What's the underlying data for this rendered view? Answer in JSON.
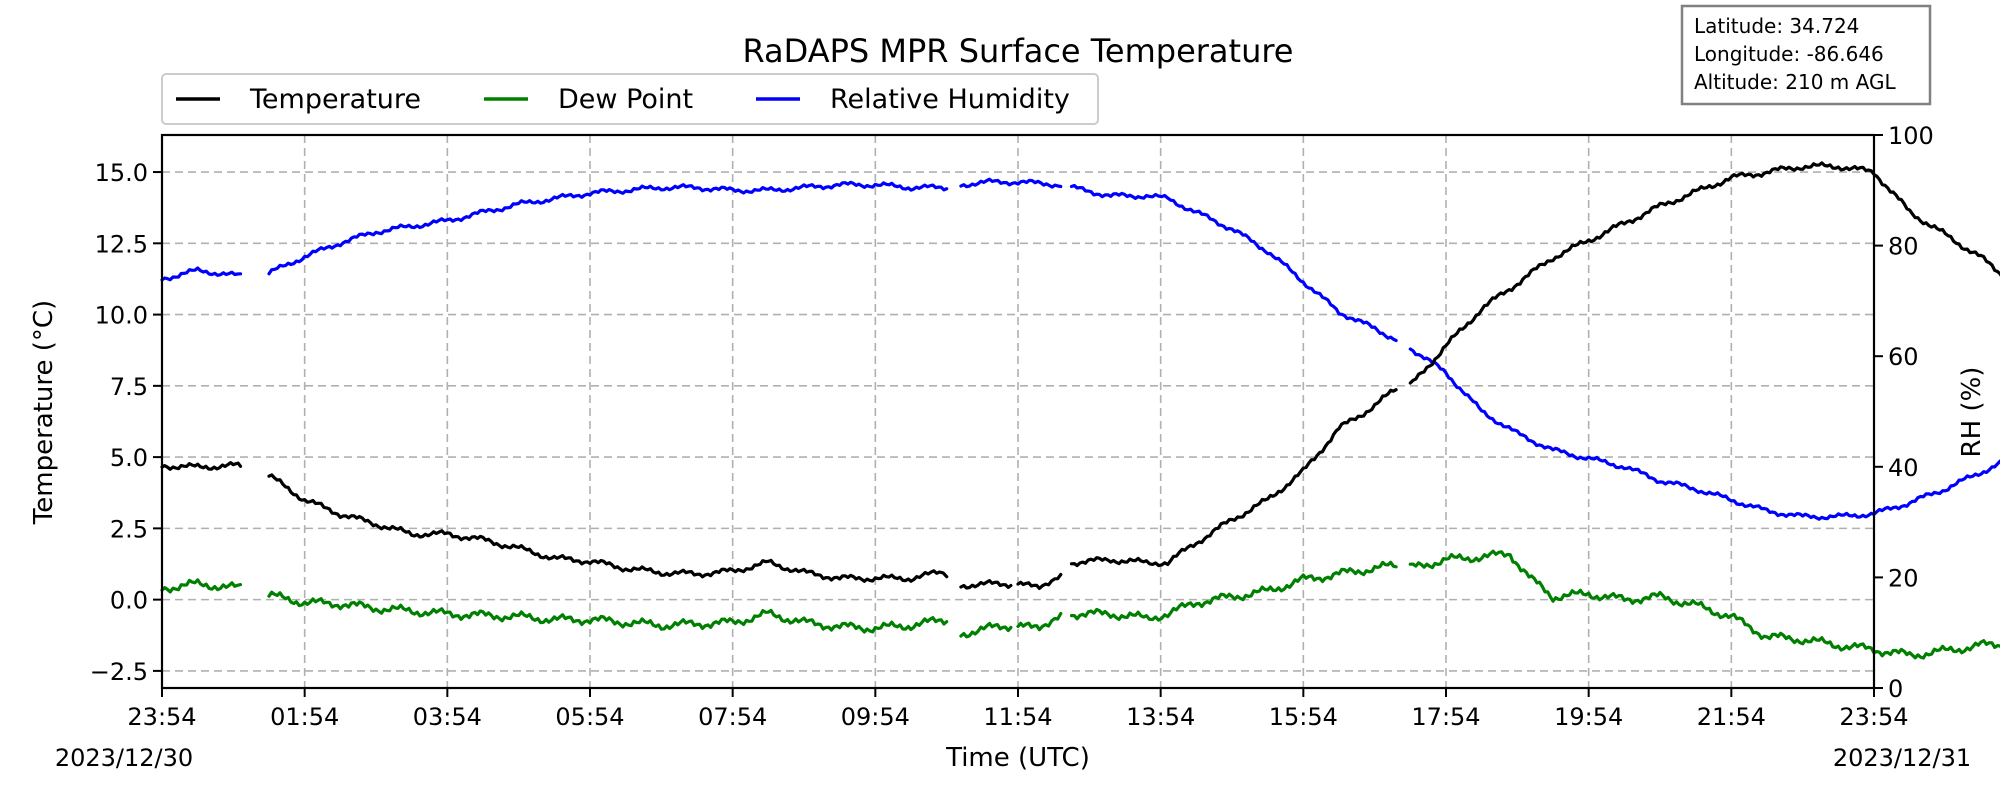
{
  "chart_data": {
    "type": "line",
    "title": "RaDAPS MPR Surface Temperature",
    "xlabel": "Time (UTC)",
    "ylabel_left": "Temperature (°C)",
    "ylabel_right": "RH (%)",
    "x_ticks": [
      "23:54",
      "01:54",
      "03:54",
      "05:54",
      "07:54",
      "09:54",
      "11:54",
      "13:54",
      "15:54",
      "17:54",
      "19:54",
      "21:54",
      "23:54"
    ],
    "date_start": "2023/12/30",
    "date_end": "2023/12/31",
    "x_range_hours": [
      0,
      24
    ],
    "y_left_ticks": [
      "−2.5",
      "0.0",
      "2.5",
      "5.0",
      "7.5",
      "10.0",
      "12.5",
      "15.0"
    ],
    "y_left_range": [
      -3.1,
      16.3
    ],
    "y_right_ticks": [
      "0",
      "20",
      "40",
      "60",
      "80",
      "100"
    ],
    "y_right_range": [
      0,
      100
    ],
    "grid": true,
    "legend_position": "top-left",
    "info_box": [
      "Latitude: 34.724",
      "Longitude: -86.646",
      "Altitude: 210 m AGL"
    ],
    "series": [
      {
        "name": "Temperature",
        "axis": "left",
        "color": "#000000",
        "segments": [
          [
            [
              0.0,
              4.7
            ],
            [
              0.5,
              4.65
            ],
            [
              1.0,
              4.7
            ],
            [
              1.1,
              4.7
            ]
          ],
          [
            [
              1.5,
              4.35
            ],
            [
              2.0,
              3.5
            ],
            [
              2.5,
              3.0
            ],
            [
              3.0,
              2.65
            ],
            [
              3.5,
              2.3
            ],
            [
              4.0,
              2.3
            ],
            [
              4.5,
              2.1
            ],
            [
              5.0,
              1.8
            ],
            [
              5.5,
              1.45
            ],
            [
              6.0,
              1.35
            ],
            [
              6.5,
              1.1
            ],
            [
              7.0,
              0.95
            ],
            [
              7.5,
              0.9
            ],
            [
              8.0,
              1.0
            ],
            [
              8.5,
              1.3
            ],
            [
              9.0,
              0.95
            ],
            [
              9.5,
              0.75
            ],
            [
              10.0,
              0.75
            ],
            [
              10.5,
              0.75
            ],
            [
              10.9,
              0.95
            ],
            [
              11.0,
              0.9
            ]
          ],
          [
            [
              11.2,
              0.5
            ],
            [
              11.6,
              0.55
            ],
            [
              11.9,
              0.55
            ]
          ],
          [
            [
              12.0,
              0.5
            ],
            [
              12.3,
              0.5
            ],
            [
              12.6,
              0.8
            ]
          ],
          [
            [
              12.75,
              1.3
            ],
            [
              13.3,
              1.4
            ],
            [
              13.8,
              1.3
            ],
            [
              14.1,
              1.3
            ],
            [
              14.5,
              2.0
            ],
            [
              15.0,
              2.8
            ],
            [
              15.5,
              3.5
            ],
            [
              16.0,
              4.5
            ],
            [
              16.5,
              6.0
            ],
            [
              17.0,
              6.8
            ],
            [
              17.3,
              7.4
            ]
          ],
          [
            [
              17.5,
              7.5
            ],
            [
              18.0,
              8.9
            ],
            [
              18.5,
              10.2
            ],
            [
              19.0,
              11.1
            ],
            [
              19.5,
              12.0
            ],
            [
              20.0,
              12.6
            ],
            [
              20.5,
              13.2
            ],
            [
              21.0,
              13.8
            ],
            [
              21.5,
              14.3
            ],
            [
              22.0,
              14.8
            ],
            [
              22.5,
              15.0
            ],
            [
              23.0,
              15.2
            ],
            [
              23.5,
              15.2
            ],
            [
              24.0,
              15.0
            ],
            [
              24.5,
              13.6
            ],
            [
              25.0,
              12.8
            ],
            [
              25.5,
              12.0
            ],
            [
              26.0,
              11.0
            ]
          ]
        ]
      },
      {
        "name": "Dew Point",
        "axis": "left",
        "color": "#008000",
        "segments": [
          [
            [
              0.0,
              0.4
            ],
            [
              0.5,
              0.55
            ],
            [
              1.1,
              0.4
            ]
          ],
          [
            [
              1.5,
              0.15
            ],
            [
              2.0,
              -0.1
            ],
            [
              2.5,
              -0.15
            ],
            [
              3.0,
              -0.3
            ],
            [
              3.5,
              -0.4
            ],
            [
              4.0,
              -0.5
            ],
            [
              4.5,
              -0.55
            ],
            [
              5.0,
              -0.6
            ],
            [
              5.5,
              -0.7
            ],
            [
              6.0,
              -0.7
            ],
            [
              6.5,
              -0.8
            ],
            [
              7.0,
              -0.9
            ],
            [
              7.5,
              -0.85
            ],
            [
              8.0,
              -0.8
            ],
            [
              8.5,
              -0.5
            ],
            [
              9.0,
              -0.8
            ],
            [
              9.5,
              -0.95
            ],
            [
              10.0,
              -1.0
            ],
            [
              10.5,
              -0.9
            ],
            [
              11.0,
              -0.7
            ]
          ],
          [
            [
              11.2,
              -1.2
            ],
            [
              11.6,
              -1.0
            ],
            [
              11.9,
              -0.9
            ]
          ],
          [
            [
              12.0,
              -1.0
            ],
            [
              12.3,
              -0.9
            ],
            [
              12.6,
              -0.6
            ]
          ],
          [
            [
              12.75,
              -0.5
            ],
            [
              13.3,
              -0.5
            ],
            [
              13.8,
              -0.65
            ],
            [
              14.1,
              -0.5
            ],
            [
              14.5,
              -0.1
            ],
            [
              15.0,
              0.1
            ],
            [
              15.5,
              0.3
            ],
            [
              16.0,
              0.7
            ],
            [
              16.5,
              0.9
            ],
            [
              17.0,
              1.1
            ],
            [
              17.3,
              1.2
            ]
          ],
          [
            [
              17.5,
              1.1
            ],
            [
              18.0,
              1.4
            ],
            [
              18.5,
              1.5
            ],
            [
              18.9,
              1.6
            ],
            [
              19.2,
              0.7
            ],
            [
              19.5,
              0.1
            ],
            [
              20.0,
              0.2
            ],
            [
              20.5,
              0.0
            ],
            [
              21.0,
              0.1
            ],
            [
              21.5,
              -0.2
            ],
            [
              22.0,
              -0.6
            ],
            [
              22.5,
              -1.3
            ],
            [
              23.0,
              -1.4
            ],
            [
              23.5,
              -1.6
            ],
            [
              24.0,
              -1.75
            ],
            [
              24.5,
              -1.95
            ],
            [
              25.0,
              -1.8
            ],
            [
              25.5,
              -1.6
            ],
            [
              26.0,
              -1.55
            ]
          ]
        ]
      },
      {
        "name": "Relative Humidity",
        "axis": "right",
        "color": "#0000ff",
        "segments": [
          [
            [
              0.0,
              74
            ],
            [
              0.5,
              75.5
            ],
            [
              1.1,
              74.5
            ]
          ],
          [
            [
              1.5,
              75
            ],
            [
              2.0,
              78
            ],
            [
              2.5,
              80.5
            ],
            [
              3.0,
              82.5
            ],
            [
              3.5,
              83.5
            ],
            [
              4.0,
              84.5
            ],
            [
              4.5,
              86
            ],
            [
              5.0,
              87.5
            ],
            [
              5.5,
              88.5
            ],
            [
              6.0,
              89.5
            ],
            [
              6.5,
              90
            ],
            [
              7.0,
              90.5
            ],
            [
              7.5,
              90.5
            ],
            [
              8.0,
              90
            ],
            [
              8.5,
              90
            ],
            [
              9.0,
              90.5
            ],
            [
              9.5,
              91
            ],
            [
              10.0,
              91
            ],
            [
              10.5,
              90.5
            ],
            [
              11.0,
              90.5
            ]
          ],
          [
            [
              11.2,
              91
            ],
            [
              11.6,
              91.5
            ],
            [
              12.0,
              91.5
            ],
            [
              12.6,
              91
            ]
          ],
          [
            [
              12.75,
              90.5
            ],
            [
              13.3,
              89
            ],
            [
              13.8,
              89
            ],
            [
              14.1,
              88.5
            ],
            [
              14.5,
              86
            ],
            [
              15.0,
              83
            ],
            [
              15.5,
              79
            ],
            [
              16.0,
              73.5
            ],
            [
              16.5,
              68
            ],
            [
              17.0,
              65
            ],
            [
              17.3,
              63
            ]
          ],
          [
            [
              17.5,
              61.5
            ],
            [
              18.0,
              57
            ],
            [
              18.5,
              50
            ],
            [
              19.0,
              46
            ],
            [
              19.5,
              43
            ],
            [
              20.0,
              41.5
            ],
            [
              20.5,
              40
            ],
            [
              21.0,
              37.5
            ],
            [
              21.5,
              36
            ],
            [
              22.0,
              34
            ],
            [
              22.5,
              32
            ],
            [
              23.0,
              31
            ],
            [
              23.5,
              31
            ],
            [
              24.0,
              31.5
            ],
            [
              24.5,
              33.5
            ],
            [
              25.0,
              36
            ],
            [
              25.5,
              39
            ],
            [
              26.0,
              42
            ]
          ]
        ]
      }
    ]
  }
}
